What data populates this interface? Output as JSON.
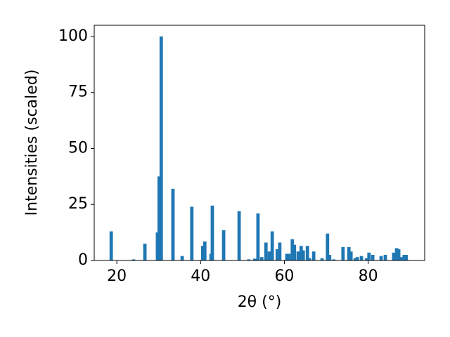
{
  "chart_data": {
    "type": "bar",
    "xlabel": "2θ (°)",
    "ylabel": "Intensities (scaled)",
    "x": [
      18.66,
      24.0,
      26.7,
      29.7,
      30.1,
      30.6,
      33.4,
      35.6,
      37.9,
      40.5,
      41.0,
      42.5,
      42.8,
      45.5,
      49.2,
      51.5,
      52.9,
      53.7,
      54.6,
      55.6,
      56.4,
      57.1,
      58.3,
      58.9,
      60.6,
      61.1,
      61.9,
      62.4,
      63.3,
      64.0,
      64.5,
      65.5,
      66.0,
      67.0,
      69.0,
      70.3,
      70.8,
      71.8,
      74.0,
      75.4,
      75.9,
      76.9,
      77.4,
      78.4,
      79.6,
      80.2,
      81.1,
      83.1,
      84.1,
      86.1,
      86.8,
      87.3,
      88.0,
      88.6,
      89.1
    ],
    "values": [
      13,
      0.5,
      7.5,
      12.5,
      37.5,
      100,
      32,
      2,
      24,
      6.5,
      8.5,
      3,
      24.5,
      13.5,
      22,
      0.5,
      0.8,
      21,
      1.5,
      8,
      4,
      13,
      5,
      8,
      3,
      3,
      9.5,
      7,
      4,
      6.5,
      4.5,
      6.5,
      1,
      4,
      1,
      12,
      2.5,
      0.5,
      6,
      6,
      4,
      1,
      1.5,
      2,
      1,
      3.5,
      2.5,
      2,
      2.5,
      3.5,
      5.5,
      5,
      1.5,
      2.5,
      2.5
    ],
    "color": "#1f77b4",
    "xlim": [
      14.6,
      93.5
    ],
    "xticks": [
      20,
      40,
      60,
      80
    ],
    "ylim": [
      0,
      105
    ],
    "yticks": [
      0,
      25,
      50,
      75,
      100
    ],
    "grid": false
  }
}
